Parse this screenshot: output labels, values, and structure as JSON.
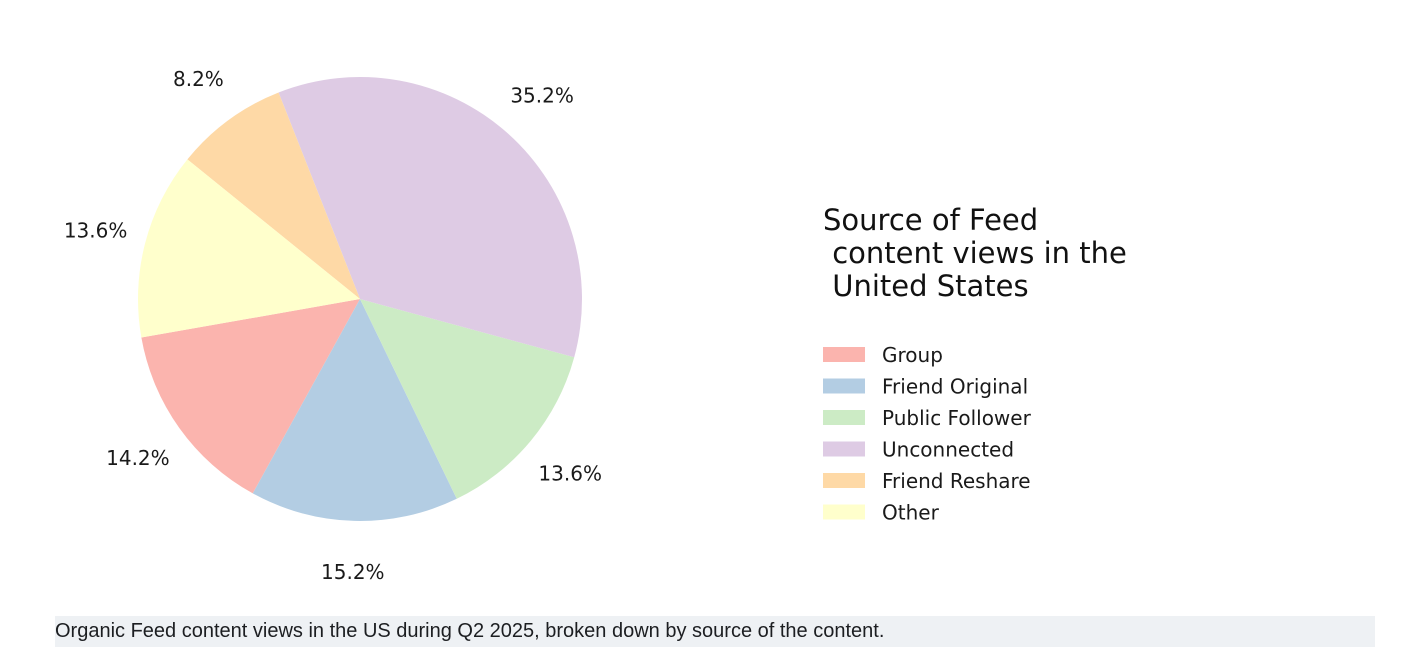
{
  "chart_data": {
    "type": "pie",
    "title_lines": [
      "Source of Feed",
      " content views in the",
      " United States"
    ],
    "categories": [
      "Group",
      "Friend Original",
      "Public Follower",
      "Unconnected",
      "Friend Reshare",
      "Other"
    ],
    "values": [
      14.2,
      15.2,
      13.6,
      35.2,
      8.2,
      13.6
    ],
    "labels": [
      "14.2%",
      "15.2%",
      "13.6%",
      "35.2%",
      "8.2%",
      "13.6%"
    ],
    "colors": [
      "#fbb4ae",
      "#b3cde3",
      "#ccebc5",
      "#decbe4",
      "#fed9a6",
      "#ffffcc"
    ],
    "legend_position": "right",
    "start_angle_deg": 190,
    "direction": "counterclockwise"
  },
  "caption": "Organic Feed content views in the US during Q2 2025, broken down by source of the content."
}
